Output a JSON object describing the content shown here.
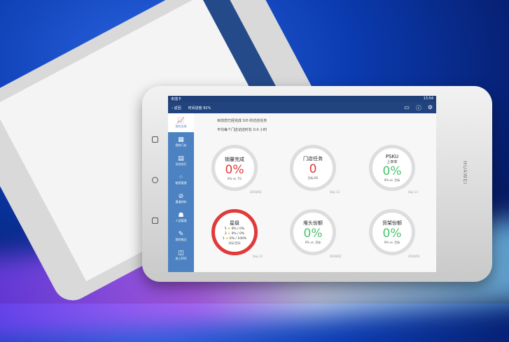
{
  "status": {
    "carrier": "未插卡",
    "time": "13:54"
  },
  "nav": {
    "back": "返回",
    "progress": "时间进度 82%",
    "icons": [
      "message-icon",
      "help-icon",
      "settings-icon"
    ]
  },
  "sidebar": {
    "items": [
      {
        "label": "我的业绩",
        "icon": "chart-icon",
        "active": true
      },
      {
        "label": "我的门店",
        "icon": "store-icon"
      },
      {
        "label": "访店执行",
        "icon": "clipboard-icon"
      },
      {
        "label": "物资管理",
        "icon": "grid-icon"
      },
      {
        "label": "渠道材料",
        "icon": "paperclip-icon"
      },
      {
        "label": "人员管理",
        "icon": "people-icon"
      },
      {
        "label": "我的笔记",
        "icon": "note-icon"
      },
      {
        "label": "进入DSS",
        "icon": "dss-icon"
      }
    ]
  },
  "messages": [
    "目前您已经完成 0/0 的访店任务",
    "平均每个门店访店时长 0.0 小时"
  ],
  "gauges": [
    {
      "title": "销量完成",
      "value": "0%",
      "note": "0% vs. TG",
      "date": "2016/02",
      "color": "#e03a3a"
    },
    {
      "title": "门店任务",
      "value": "0",
      "note": "目标:85",
      "date": "Sep 13",
      "color": "#e03a3a"
    },
    {
      "title": "PSKU",
      "subtitle": "上架率",
      "value": "0%",
      "note": "0% vs. 目标",
      "date": "Sep 13",
      "color": "#4cc36b"
    },
    {
      "title": "星级",
      "rows": [
        {
          "n": "5",
          "v": "0% / 0%"
        },
        {
          "n": "3",
          "v": "0% / 0%"
        },
        {
          "n": "1",
          "v": "0% / 100%"
        }
      ],
      "note": "实际/目标",
      "date": "Sep 13"
    },
    {
      "title": "堆头份额",
      "value": "0%",
      "note": "0% vs. 目标",
      "date": "2016/02",
      "color": "#4cc36b"
    },
    {
      "title": "货架份额",
      "value": "0%",
      "note": "0% vs. 目标",
      "date": "2016/02",
      "color": "#4cc36b"
    }
  ],
  "device": {
    "brand": "HUAWEI"
  }
}
